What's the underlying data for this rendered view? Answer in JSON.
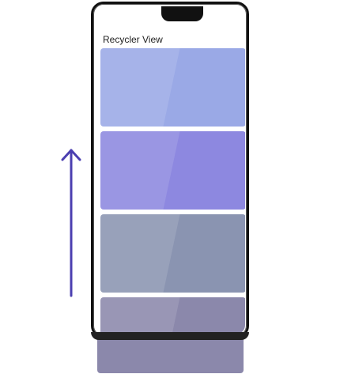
{
  "screen": {
    "title": "Recycler View"
  },
  "cards": [
    {
      "color": "#9aa9e6"
    },
    {
      "color": "#8d88e0"
    },
    {
      "color": "#8a94b1"
    },
    {
      "color": "#8b88ab"
    }
  ],
  "arrow": {
    "icon": "up-arrow-icon",
    "color": "#4b3fb0"
  },
  "colors": {
    "frame": "#111111",
    "background": "#ffffff"
  }
}
